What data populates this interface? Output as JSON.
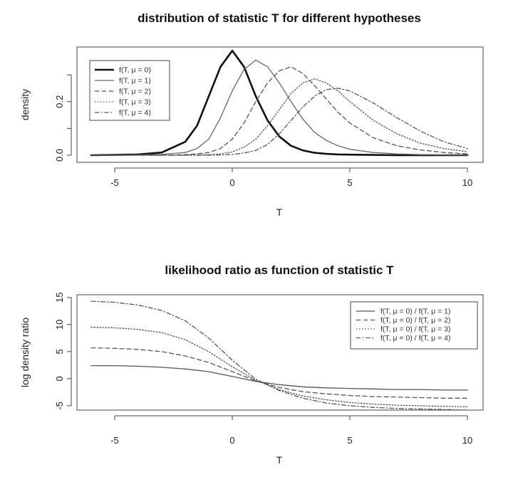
{
  "chart_data": [
    {
      "type": "line",
      "title": "distribution of statistic T for different hypotheses",
      "xlabel": "T",
      "ylabel": "density",
      "xlim": [
        -6,
        10
      ],
      "ylim": [
        0,
        0.38
      ],
      "xticks": [
        -5,
        0,
        5,
        10
      ],
      "yticks": [
        0.0,
        0.2
      ],
      "ytick_labels": [
        "0.0",
        "0.2"
      ],
      "legend_position": "top-left",
      "x": [
        -6,
        -5,
        -4,
        -3,
        -2,
        -1.5,
        -1,
        -0.5,
        0,
        0.5,
        1,
        1.5,
        2,
        2.5,
        3,
        3.5,
        4,
        4.5,
        5,
        6,
        7,
        8,
        9,
        10
      ],
      "series": [
        {
          "name": "f(T, μ = 0)",
          "line_style": "solid-thick",
          "color": "#111111",
          "values": [
            0.0,
            0.001,
            0.003,
            0.01,
            0.05,
            0.11,
            0.22,
            0.33,
            0.39,
            0.33,
            0.22,
            0.13,
            0.07,
            0.035,
            0.018,
            0.009,
            0.005,
            0.003,
            0.002,
            0.001,
            0.0,
            0.0,
            0.0,
            0.0
          ]
        },
        {
          "name": "f(T, μ = 1)",
          "line_style": "solid",
          "color": "#666666",
          "values": [
            0.0,
            0.0,
            0.001,
            0.003,
            0.01,
            0.025,
            0.06,
            0.14,
            0.24,
            0.32,
            0.355,
            0.33,
            0.27,
            0.2,
            0.135,
            0.085,
            0.055,
            0.035,
            0.022,
            0.01,
            0.005,
            0.002,
            0.001,
            0.0
          ]
        },
        {
          "name": "f(T, μ = 2)",
          "line_style": "dashed",
          "color": "#555555",
          "values": [
            0.0,
            0.0,
            0.0,
            0.0,
            0.002,
            0.005,
            0.01,
            0.025,
            0.06,
            0.12,
            0.2,
            0.27,
            0.315,
            0.33,
            0.305,
            0.26,
            0.21,
            0.16,
            0.12,
            0.065,
            0.035,
            0.02,
            0.01,
            0.005
          ]
        },
        {
          "name": "f(T, μ = 3)",
          "line_style": "dotted",
          "color": "#555555",
          "values": [
            0.0,
            0.0,
            0.0,
            0.0,
            0.0,
            0.001,
            0.002,
            0.005,
            0.012,
            0.03,
            0.06,
            0.11,
            0.17,
            0.23,
            0.27,
            0.285,
            0.27,
            0.24,
            0.2,
            0.13,
            0.08,
            0.045,
            0.025,
            0.013
          ]
        },
        {
          "name": "f(T, μ = 4)",
          "line_style": "dashdot",
          "color": "#555555",
          "values": [
            0.0,
            0.0,
            0.0,
            0.0,
            0.0,
            0.0,
            0.0,
            0.001,
            0.003,
            0.008,
            0.018,
            0.04,
            0.08,
            0.13,
            0.18,
            0.22,
            0.245,
            0.25,
            0.24,
            0.195,
            0.14,
            0.09,
            0.05,
            0.025
          ]
        }
      ]
    },
    {
      "type": "line",
      "title": "likelihood ratio as function of statistic T",
      "xlabel": "T",
      "ylabel": "log density ratio",
      "xlim": [
        -6,
        10
      ],
      "ylim": [
        -5.8,
        15.5
      ],
      "xticks": [
        -5,
        0,
        5,
        10
      ],
      "yticks": [
        -5,
        0,
        5,
        10,
        15
      ],
      "ytick_labels": [
        "-5",
        "0",
        "5",
        "10",
        "15"
      ],
      "legend_position": "top-right",
      "x": [
        -6,
        -5,
        -4,
        -3,
        -2,
        -1,
        0,
        1,
        2,
        2.5,
        3,
        4,
        5,
        6,
        7,
        8,
        9,
        10
      ],
      "series": [
        {
          "name": "f(T, μ = 0) / f(T, μ = 1)",
          "line_style": "solid",
          "color": "#555555",
          "values": [
            2.4,
            2.4,
            2.3,
            2.1,
            1.8,
            1.3,
            0.4,
            -0.5,
            -1.1,
            -1.3,
            -1.5,
            -1.7,
            -1.8,
            -1.9,
            -2.0,
            -2.0,
            -2.1,
            -2.1
          ]
        },
        {
          "name": "f(T, μ = 0) / f(T, μ = 2)",
          "line_style": "dashed",
          "color": "#555555",
          "values": [
            5.7,
            5.6,
            5.4,
            5.0,
            4.2,
            3.0,
            1.3,
            -0.4,
            -1.6,
            -2.0,
            -2.4,
            -2.8,
            -3.1,
            -3.3,
            -3.4,
            -3.5,
            -3.6,
            -3.6
          ]
        },
        {
          "name": "f(T, μ = 0) / f(T, μ = 3)",
          "line_style": "dotted",
          "color": "#555555",
          "values": [
            9.5,
            9.4,
            9.1,
            8.5,
            7.2,
            5.0,
            2.2,
            -0.3,
            -2.0,
            -2.6,
            -3.2,
            -3.9,
            -4.4,
            -4.7,
            -4.9,
            -5.0,
            -5.1,
            -5.2
          ]
        },
        {
          "name": "f(T, μ = 0) / f(T, μ = 4)",
          "line_style": "dashdot",
          "color": "#555555",
          "values": [
            14.3,
            14.1,
            13.6,
            12.6,
            10.7,
            7.5,
            3.4,
            -0.1,
            -2.2,
            -2.9,
            -3.6,
            -4.5,
            -5.0,
            -5.3,
            -5.5,
            -5.6,
            -5.7,
            -5.8
          ]
        }
      ]
    }
  ]
}
